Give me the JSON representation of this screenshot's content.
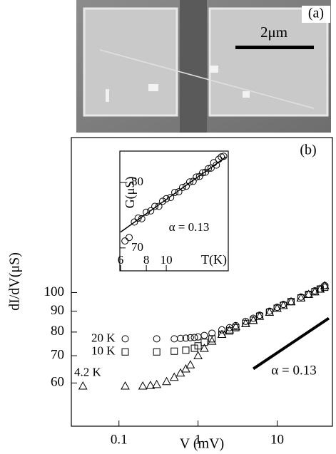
{
  "image": {
    "panel_label": "(a)",
    "scale_bar_label": "2μm"
  },
  "chart_data": [
    {
      "type": "scatter",
      "panel_label": "(b)",
      "xlabel": "V (mV)",
      "ylabel": "dI/dV(μS)",
      "xscale": "log",
      "yscale": "log",
      "xlim": [
        0.025,
        50
      ],
      "ylim": [
        47,
        240
      ],
      "xticks": [
        0.1,
        1,
        10
      ],
      "yticks": [
        60,
        70,
        80,
        90,
        100
      ],
      "series": [
        {
          "name": "20 K",
          "marker": "circle",
          "color": "#000000",
          "x": [
            0.12,
            0.3,
            0.5,
            0.6,
            0.7,
            0.8,
            0.9,
            1.0,
            1.2,
            1.5,
            2,
            2.5,
            3,
            4,
            5,
            6,
            8,
            10,
            12,
            15,
            20,
            25,
            30,
            35,
            40
          ],
          "values": [
            77,
            77,
            77,
            77.2,
            77.3,
            77.5,
            77.6,
            77.8,
            78.5,
            79.5,
            81,
            82,
            83,
            85,
            86.5,
            88,
            90,
            92,
            93.5,
            95,
            97.5,
            99,
            101,
            102,
            104
          ]
        },
        {
          "name": "10 K",
          "marker": "square",
          "color": "#000000",
          "x": [
            0.12,
            0.3,
            0.5,
            0.7,
            0.9,
            1.0,
            1.2,
            1.5,
            2,
            2.5,
            3,
            4,
            5,
            6,
            8,
            10,
            12,
            15,
            20,
            25,
            30,
            35,
            40
          ],
          "values": [
            71.5,
            71.5,
            71.8,
            72.2,
            73,
            74,
            75.5,
            77,
            79,
            80.5,
            82,
            84,
            85.5,
            87.5,
            89.5,
            91.5,
            93,
            95,
            97,
            99,
            100.5,
            102,
            103
          ]
        },
        {
          "name": "4.2 K",
          "marker": "triangle",
          "color": "#000000",
          "x": [
            0.035,
            0.12,
            0.2,
            0.25,
            0.3,
            0.4,
            0.5,
            0.6,
            0.7,
            0.8,
            1.0,
            1.2,
            1.5,
            2,
            2.5,
            3,
            4,
            5,
            6,
            8,
            10,
            12,
            15,
            20,
            25,
            30,
            35,
            40
          ],
          "values": [
            59,
            59,
            59,
            59.2,
            59.5,
            60.5,
            62,
            63.5,
            65,
            66.5,
            70,
            73,
            76,
            79,
            81,
            82.5,
            84,
            85.5,
            87.5,
            89.5,
            91.5,
            93,
            95,
            97,
            99,
            100.5,
            102,
            104
          ]
        }
      ],
      "lines": [
        {
          "label": "α = 0.13",
          "color": "#000000",
          "width": 4,
          "x": [
            5,
            45
          ],
          "values": [
            65,
            86.5
          ]
        }
      ]
    },
    {
      "type": "scatter",
      "xlabel": "T(K)",
      "ylabel": "G(μS)",
      "annotation": "α = 0.13",
      "xscale": "log",
      "yscale": "log",
      "xlim": [
        5.95,
        20
      ],
      "ylim": [
        66.8,
        85.3
      ],
      "xticks": [
        6,
        8,
        10
      ],
      "yticks": [
        70,
        80
      ],
      "series": [
        {
          "marker": "circle",
          "color": "#000000",
          "x": [
            6.3,
            6.6,
            7,
            7.3,
            7.6,
            8,
            8.4,
            8.8,
            9.2,
            9.6,
            10,
            10.5,
            11,
            11.5,
            12,
            12.5,
            13,
            13.5,
            14,
            14.5,
            15,
            15.5,
            16,
            16.5,
            17,
            17.5,
            18,
            18.5,
            19
          ],
          "values": [
            71.0,
            71.5,
            73.8,
            74.4,
            74.3,
            75.3,
            75.5,
            76.2,
            76.2,
            77.0,
            77.4,
            77.6,
            78.4,
            78.5,
            79.2,
            79.4,
            80.1,
            80.2,
            80.9,
            81.0,
            81.6,
            81.7,
            82.3,
            82.4,
            83.3,
            82.9,
            83.9,
            84.3,
            84.4
          ]
        }
      ],
      "lines": [
        {
          "color": "#000000",
          "width": 1.5,
          "x": [
            6,
            19.5
          ],
          "values": [
            72.3,
            84.3
          ]
        }
      ]
    }
  ]
}
